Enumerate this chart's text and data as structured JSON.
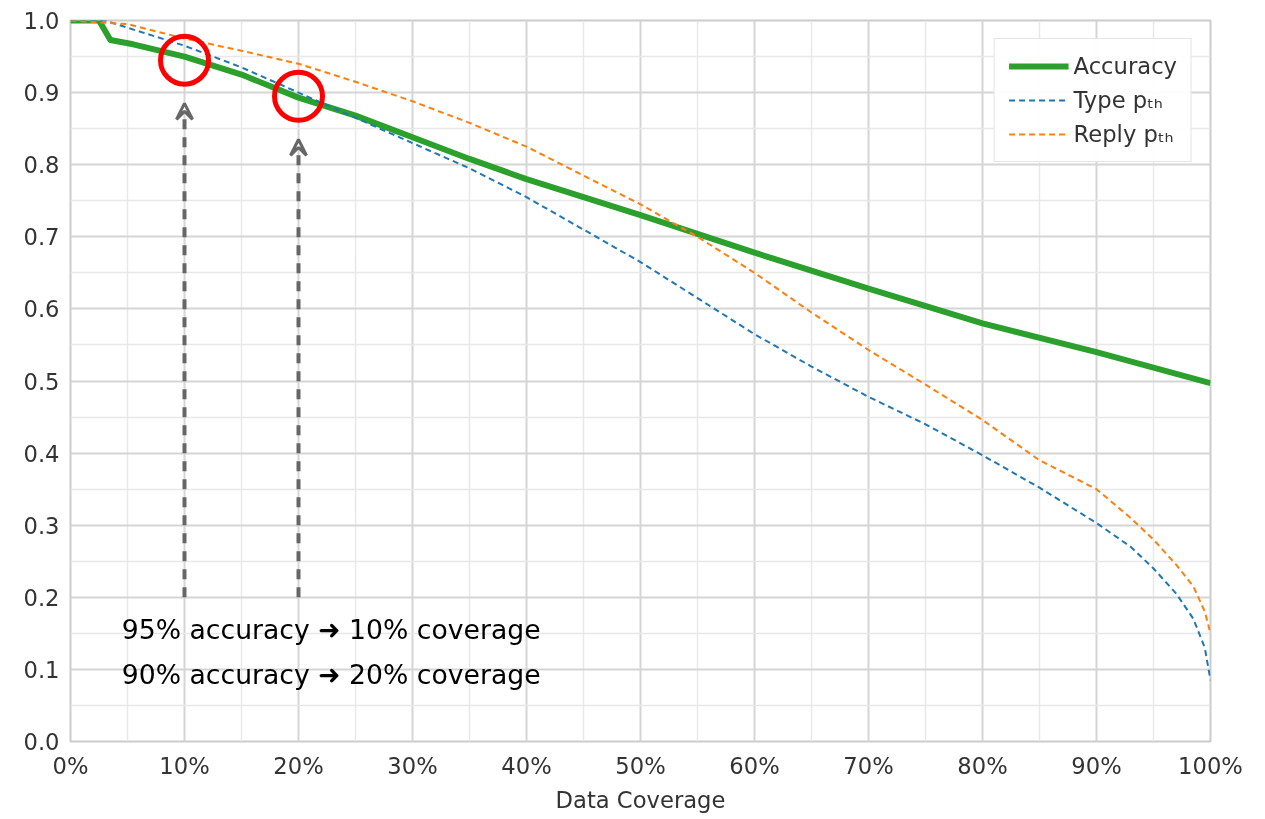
{
  "chart_data": {
    "type": "line",
    "xlabel": "Data Coverage",
    "xlim": [
      0,
      100
    ],
    "ylim": [
      0,
      1
    ],
    "xticks": [
      {
        "value": 0,
        "label": "0%"
      },
      {
        "value": 10,
        "label": "10%"
      },
      {
        "value": 20,
        "label": "20%"
      },
      {
        "value": 30,
        "label": "30%"
      },
      {
        "value": 40,
        "label": "40%"
      },
      {
        "value": 50,
        "label": "50%"
      },
      {
        "value": 60,
        "label": "60%"
      },
      {
        "value": 70,
        "label": "70%"
      },
      {
        "value": 80,
        "label": "80%"
      },
      {
        "value": 90,
        "label": "90%"
      },
      {
        "value": 100,
        "label": "100%"
      }
    ],
    "yticks": [
      {
        "value": 0,
        "label": "0.0"
      },
      {
        "value": 0.1,
        "label": "0.1"
      },
      {
        "value": 0.2,
        "label": "0.2"
      },
      {
        "value": 0.3,
        "label": "0.3"
      },
      {
        "value": 0.4,
        "label": "0.4"
      },
      {
        "value": 0.5,
        "label": "0.5"
      },
      {
        "value": 0.6,
        "label": "0.6"
      },
      {
        "value": 0.7,
        "label": "0.7"
      },
      {
        "value": 0.8,
        "label": "0.8"
      },
      {
        "value": 0.9,
        "label": "0.9"
      },
      {
        "value": 1,
        "label": "1.0"
      }
    ],
    "grid": true,
    "legend": "top right",
    "marker": "none",
    "series": [
      {
        "name": "Accuracy",
        "color": "#2ca02c",
        "line_style": "solid",
        "x": [
          0,
          2.5,
          3.5,
          5.5,
          10,
          15,
          20,
          25,
          30,
          35,
          40,
          50,
          60,
          70,
          80,
          90,
          100
        ],
        "values": [
          1.0,
          1.0,
          0.973,
          0.967,
          0.95,
          0.925,
          0.893,
          0.868,
          0.838,
          0.808,
          0.78,
          0.73,
          0.678,
          0.628,
          0.58,
          0.54,
          0.497
        ]
      },
      {
        "name": "Type pₜₕ",
        "color": "#1f77b4",
        "line_style": "dashed",
        "x": [
          0,
          3,
          5,
          10,
          15,
          20,
          25,
          30,
          35,
          40,
          45,
          50,
          55,
          60,
          65,
          70,
          75,
          80,
          85,
          90,
          93,
          95,
          97,
          98.5,
          99.5,
          100
        ],
        "values": [
          1.0,
          1.0,
          0.99,
          0.965,
          0.935,
          0.9,
          0.865,
          0.83,
          0.795,
          0.755,
          0.71,
          0.665,
          0.615,
          0.565,
          0.52,
          0.478,
          0.44,
          0.397,
          0.352,
          0.303,
          0.27,
          0.24,
          0.205,
          0.17,
          0.13,
          0.085
        ]
      },
      {
        "name": "Reply pₜₕ",
        "color": "#ff7f0e",
        "line_style": "dashed",
        "x": [
          0,
          5,
          10,
          15,
          20,
          25,
          30,
          35,
          40,
          45,
          50,
          55,
          60,
          65,
          70,
          75,
          80,
          85,
          90,
          93,
          95,
          97,
          98.5,
          99.5,
          100
        ],
        "values": [
          1.0,
          0.995,
          0.975,
          0.958,
          0.94,
          0.915,
          0.888,
          0.858,
          0.825,
          0.785,
          0.745,
          0.7,
          0.65,
          0.595,
          0.543,
          0.495,
          0.446,
          0.39,
          0.35,
          0.31,
          0.28,
          0.245,
          0.215,
          0.18,
          0.15
        ]
      },
      {
        "type": "scatter",
        "marker": "circle",
        "color": "#ff0000",
        "x": [
          10,
          20
        ],
        "values": [
          0.945,
          0.895
        ]
      }
    ],
    "annotations": [
      "95% accuracy ➜ 10% coverage",
      "90% accuracy ➜ 20% coverage"
    ]
  }
}
